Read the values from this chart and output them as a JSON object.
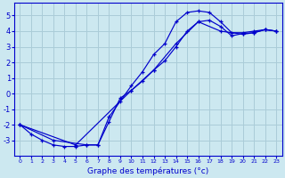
{
  "xlabel": "Graphe des températures (°c)",
  "background_color": "#cce8f0",
  "grid_color": "#aaccd8",
  "line_color": "#0000cc",
  "xlim": [
    -0.5,
    23.5
  ],
  "ylim": [
    -4.0,
    5.8
  ],
  "yticks": [
    -3,
    -2,
    -1,
    0,
    1,
    2,
    3,
    4,
    5
  ],
  "xticks": [
    0,
    1,
    2,
    3,
    4,
    5,
    6,
    7,
    8,
    9,
    10,
    11,
    12,
    13,
    14,
    15,
    16,
    17,
    18,
    19,
    20,
    21,
    22,
    23
  ],
  "line1_x": [
    0,
    1,
    2,
    3,
    4,
    5,
    6,
    7,
    8,
    9,
    10,
    11,
    12,
    13,
    14,
    15,
    16,
    17,
    18,
    19,
    20,
    21,
    22,
    23
  ],
  "line1_y": [
    -2.0,
    -2.6,
    -3.0,
    -3.3,
    -3.4,
    -3.4,
    -3.3,
    -3.3,
    -1.5,
    -0.5,
    0.5,
    1.4,
    2.5,
    3.2,
    4.6,
    5.2,
    5.3,
    5.2,
    4.6,
    3.9,
    3.9,
    4.0,
    4.1,
    4.0
  ],
  "line2_x": [
    0,
    3,
    6,
    7,
    8,
    9,
    10,
    11,
    12,
    13,
    14,
    15,
    16,
    17,
    18,
    19,
    20,
    21,
    22,
    23
  ],
  "line2_y": [
    -2.0,
    -3.0,
    -3.3,
    -3.3,
    -1.8,
    -0.3,
    0.2,
    0.8,
    1.5,
    2.1,
    3.0,
    4.0,
    4.6,
    4.7,
    4.3,
    3.7,
    3.85,
    3.9,
    4.1,
    4.0
  ],
  "line3_x": [
    0,
    5,
    10,
    12,
    14,
    16,
    18,
    20,
    21,
    22,
    23
  ],
  "line3_y": [
    -2.0,
    -3.3,
    0.2,
    1.5,
    3.2,
    4.6,
    4.0,
    3.8,
    3.9,
    4.1,
    4.0
  ]
}
